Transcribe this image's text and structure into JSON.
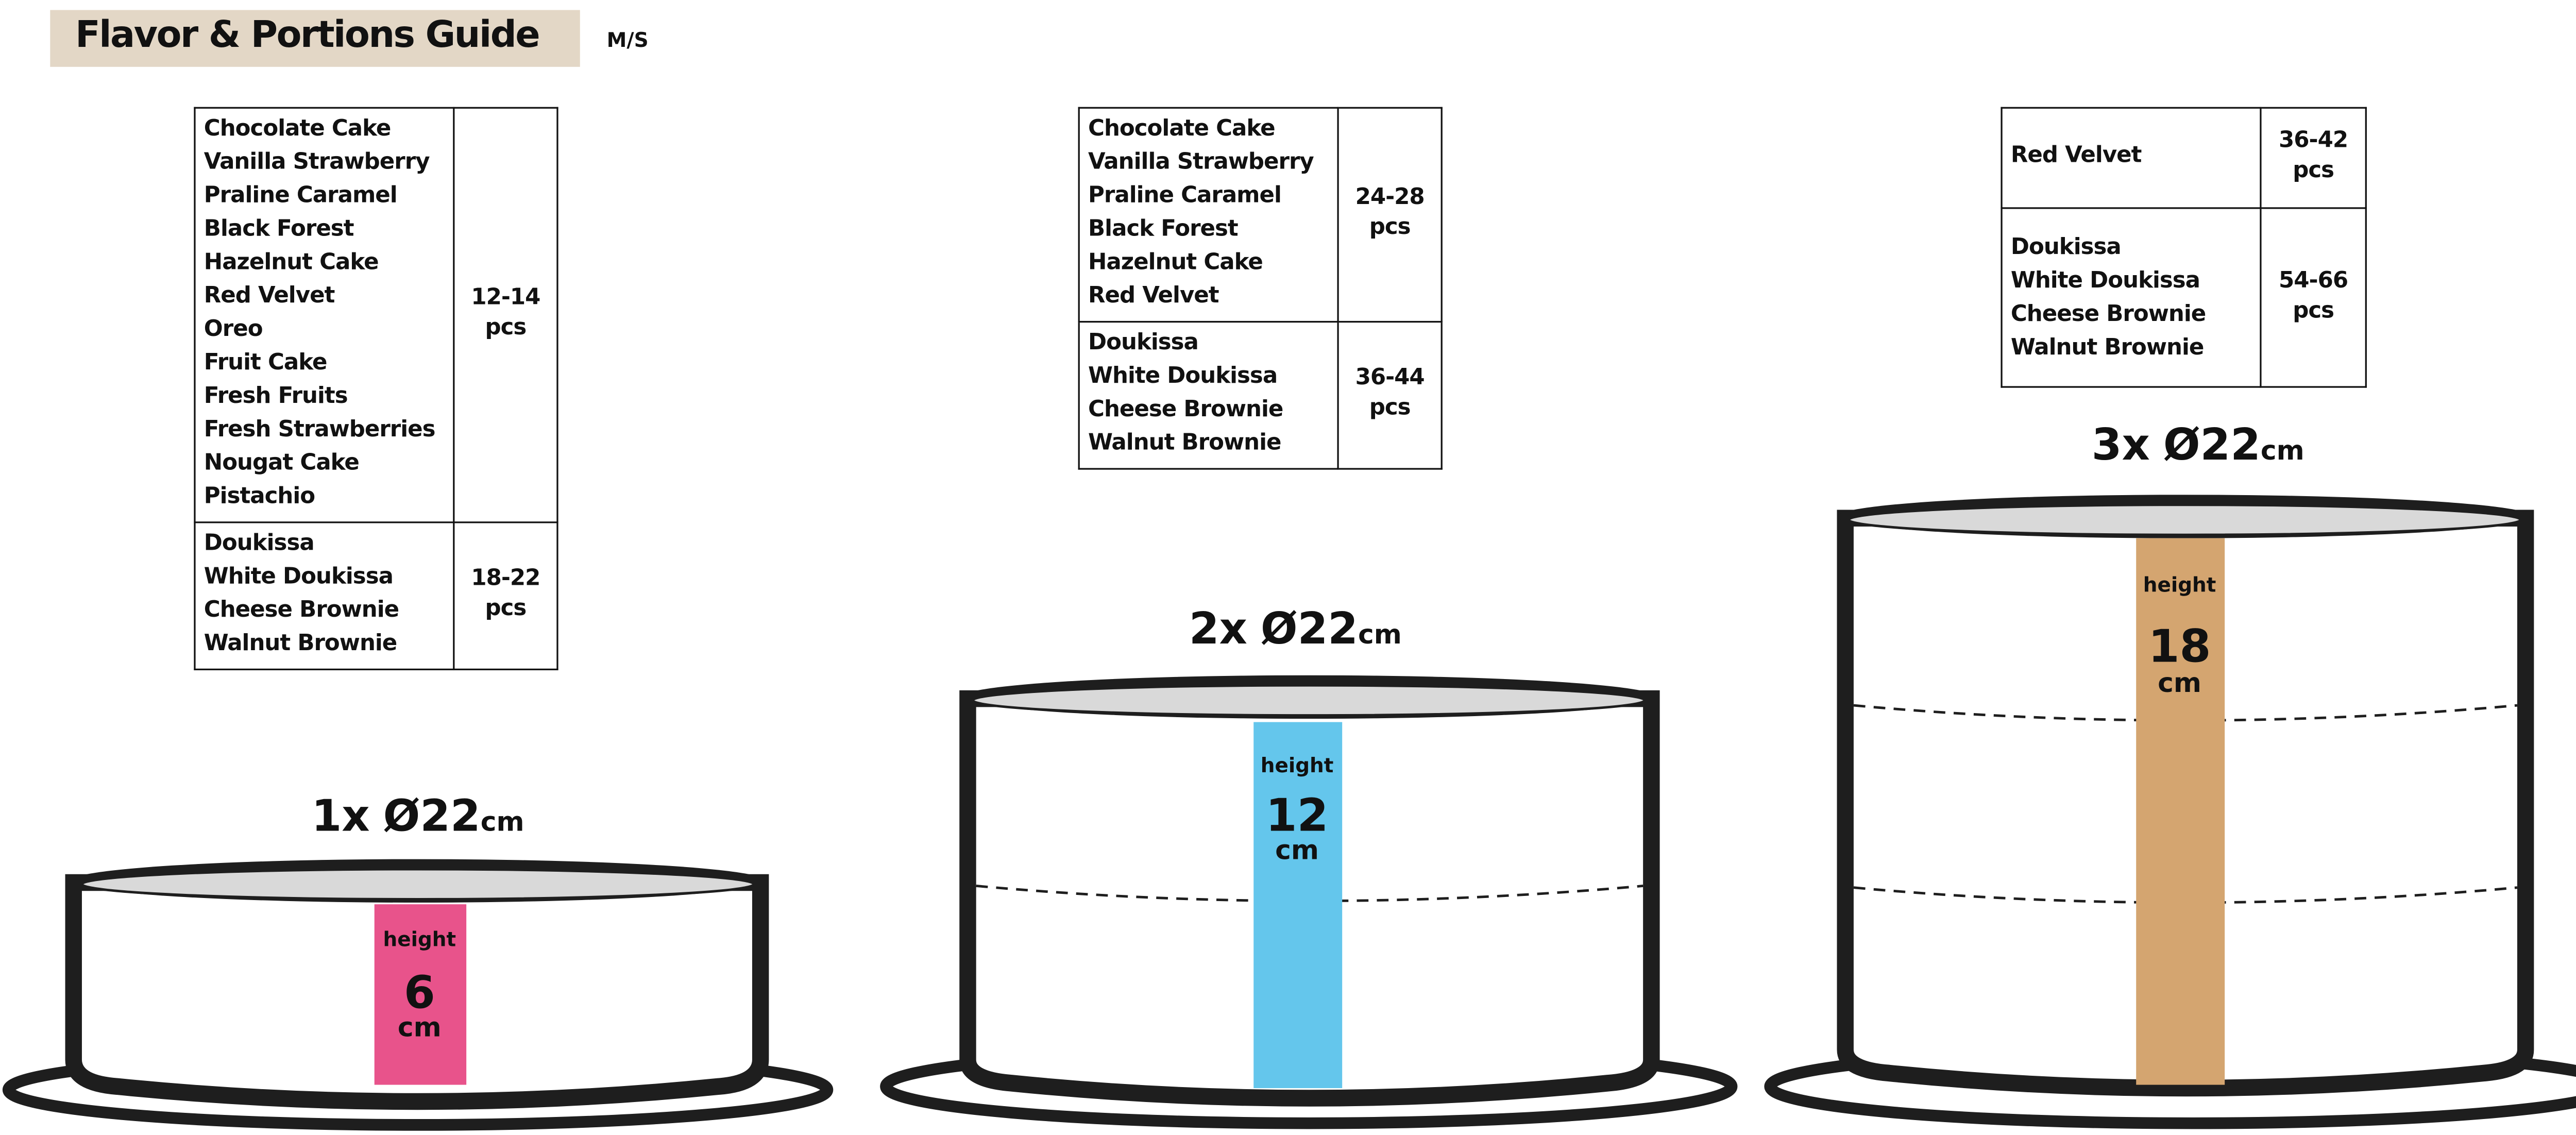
{
  "header": {
    "title": "Flavor & Portions Guide",
    "tag": "M/S"
  },
  "tables": [
    {
      "groups": [
        {
          "flavors": [
            "Chocolate Cake",
            "Vanilla Strawberry",
            "Praline Caramel",
            "Black Forest",
            "Hazelnut Cake",
            "Red Velvet",
            "Oreo",
            "Fruit Cake",
            "Fresh Fruits",
            "Fresh Strawberries",
            "Nougat Cake",
            "Pistachio"
          ],
          "portions": "12-14",
          "unit": "pcs"
        },
        {
          "flavors": [
            "Doukissa",
            "White Doukissa",
            "Cheese Brownie",
            "Walnut Brownie"
          ],
          "portions": "18-22",
          "unit": "pcs"
        }
      ]
    },
    {
      "groups": [
        {
          "flavors": [
            "Chocolate Cake",
            "Vanilla Strawberry",
            "Praline Caramel",
            "Black Forest",
            "Hazelnut Cake",
            "Red Velvet"
          ],
          "portions": "24-28",
          "unit": "pcs"
        },
        {
          "flavors": [
            "Doukissa",
            "White Doukissa",
            "Cheese Brownie",
            "Walnut Brownie"
          ],
          "portions": "36-44",
          "unit": "pcs"
        }
      ]
    },
    {
      "groups": [
        {
          "flavors": [
            "Red Velvet"
          ],
          "portions": "36-42",
          "unit": "pcs"
        },
        {
          "flavors": [
            "Doukissa",
            "White Doukissa",
            "Cheese Brownie",
            "Walnut Brownie"
          ],
          "portions": "54-66",
          "unit": "pcs"
        }
      ]
    }
  ],
  "cakes": [
    {
      "count": "1x",
      "diameter": "Ø22",
      "diameter_unit": "cm",
      "height_label": "height",
      "height": "6",
      "height_unit": "cm",
      "layers": 1,
      "color": "#e8538b"
    },
    {
      "count": "2x",
      "diameter": "Ø22",
      "diameter_unit": "cm",
      "height_label": "height",
      "height": "12",
      "height_unit": "cm",
      "layers": 2,
      "color": "#64c6ec"
    },
    {
      "count": "3x",
      "diameter": "Ø22",
      "diameter_unit": "cm",
      "height_label": "height",
      "height": "18",
      "height_unit": "cm",
      "layers": 3,
      "color": "#d4a570"
    }
  ],
  "colors": {
    "title_bg": "#e3d7c6",
    "cake_top": "#d9d9d9",
    "outline": "#1e1e1e"
  }
}
